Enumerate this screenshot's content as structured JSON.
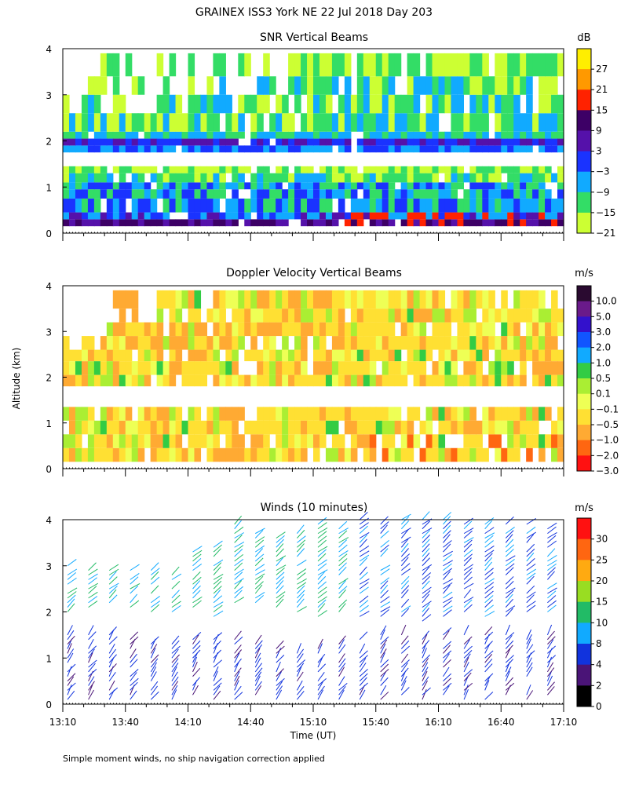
{
  "figure": {
    "title": "GRAINEX ISS3 York NE  22 Jul 2018 Day 203",
    "y_axis_label": "Altitude (km)",
    "x_axis_label": "Time (UT)",
    "footnote": "Simple moment winds, no ship navigation correction applied"
  },
  "chart_data": [
    {
      "type": "heatmap",
      "title": "SNR Vertical Beams",
      "xlabel": "",
      "ylabel": "Altitude (km)",
      "x_ticks": [
        "13:10",
        "13:40",
        "14:10",
        "14:40",
        "15:10",
        "15:40",
        "16:10",
        "16:40",
        "17:10"
      ],
      "xlim": [
        "13:10",
        "17:10"
      ],
      "ylim": [
        0,
        4
      ],
      "y_ticks": [
        "0",
        "1",
        "2",
        "3",
        "4"
      ],
      "colorbar": {
        "unit": "dB",
        "tick_labels": [
          "27",
          "21",
          "15",
          "9",
          "3",
          "−3",
          "−9",
          "−15",
          "−21"
        ],
        "colors": [
          "#ffee00",
          "#ff9900",
          "#ff2200",
          "#3d0066",
          "#5511aa",
          "#1a33ff",
          "#11aaff",
          "#33dd66",
          "#ccff33"
        ]
      },
      "echo_layers": [
        {
          "altitude_km": [
            0.15,
            1.4
          ],
          "snr_db": [
            -21,
            27
          ]
        },
        {
          "altitude_km": [
            1.8,
            2.0
          ],
          "snr_db": [
            -3,
            3
          ]
        },
        {
          "altitude_km": [
            2.0,
            3.9
          ],
          "snr_db": [
            -21,
            -9
          ]
        }
      ]
    },
    {
      "type": "heatmap",
      "title": "Doppler Velocity Vertical Beams",
      "xlabel": "",
      "ylabel": "Altitude (km)",
      "x_ticks": [
        "13:10",
        "13:40",
        "14:10",
        "14:40",
        "15:10",
        "15:40",
        "16:10",
        "16:40",
        "17:10"
      ],
      "xlim": [
        "13:10",
        "17:10"
      ],
      "ylim": [
        0,
        4
      ],
      "y_ticks": [
        "0",
        "1",
        "2",
        "3",
        "4"
      ],
      "colorbar": {
        "unit": "m/s",
        "tick_labels": [
          "10.0",
          "5.0",
          "3.0",
          "2.0",
          "1.0",
          "0.5",
          "0.1",
          "−0.1",
          "−0.5",
          "−1.0",
          "−2.0",
          "−3.0"
        ],
        "colors": [
          "#2a0a30",
          "#6a1a8a",
          "#3311cc",
          "#1155ff",
          "#11aaff",
          "#33cc44",
          "#aaee33",
          "#eeff55",
          "#ffe033",
          "#ffaa33",
          "#ff6611",
          "#ff1111"
        ]
      }
    },
    {
      "type": "scatter",
      "title": "Winds (10 minutes)",
      "xlabel": "Time (UT)",
      "ylabel": "Altitude (km)",
      "x_ticks": [
        "13:10",
        "13:40",
        "14:10",
        "14:40",
        "15:10",
        "15:40",
        "16:10",
        "16:40",
        "17:10"
      ],
      "xlim": [
        "13:10",
        "17:10"
      ],
      "ylim": [
        0,
        4
      ],
      "y_ticks": [
        "0",
        "1",
        "2",
        "3",
        "4"
      ],
      "colorbar": {
        "unit": "m/s",
        "tick_labels": [
          "30",
          "25",
          "20",
          "15",
          "10",
          "8",
          "4",
          "2",
          "0"
        ],
        "colors": [
          "#ff1111",
          "#ff6611",
          "#ffaa11",
          "#99dd22",
          "#22bb66",
          "#11aaff",
          "#1133dd",
          "#4a1477",
          "#000000"
        ]
      },
      "wind_profiles": [
        {
          "time": "13:10",
          "low_km": [
            0.1,
            1.6
          ],
          "high_km": [
            2.0,
            3.1
          ]
        },
        {
          "time": "13:20",
          "low_km": [
            0.1,
            1.6
          ],
          "high_km": [
            2.1,
            3.0
          ]
        },
        {
          "time": "13:30",
          "low_km": [
            0.1,
            1.6
          ],
          "high_km": [
            2.1,
            3.0
          ]
        },
        {
          "time": "13:40",
          "low_km": [
            0.1,
            1.6
          ],
          "high_km": [
            2.1,
            3.0
          ]
        },
        {
          "time": "13:50",
          "low_km": [
            0.1,
            1.5
          ],
          "high_km": [
            2.0,
            3.0
          ]
        },
        {
          "time": "14:00",
          "low_km": [
            0.1,
            1.4
          ],
          "high_km": [
            2.0,
            2.9
          ]
        },
        {
          "time": "14:10",
          "low_km": [
            0.1,
            1.5
          ],
          "high_km": [
            2.0,
            3.4
          ]
        },
        {
          "time": "14:20",
          "low_km": [
            0.1,
            1.5
          ],
          "high_km": [
            1.8,
            3.5
          ]
        },
        {
          "time": "14:30",
          "low_km": [
            0.1,
            1.5
          ],
          "high_km": [
            2.1,
            4.0
          ]
        },
        {
          "time": "14:40",
          "low_km": [
            0.1,
            1.3
          ],
          "high_km": [
            2.2,
            3.9
          ]
        },
        {
          "time": "14:50",
          "low_km": [
            0.1,
            1.2
          ],
          "high_km": [
            2.1,
            3.7
          ]
        },
        {
          "time": "15:00",
          "low_km": [
            0.1,
            1.1
          ],
          "high_km": [
            2.0,
            3.8
          ]
        },
        {
          "time": "15:10",
          "low_km": [
            0.1,
            1.2
          ],
          "high_km": [
            1.8,
            4.0
          ]
        },
        {
          "time": "15:20",
          "low_km": [
            0.1,
            1.3
          ],
          "high_km": [
            2.0,
            3.9
          ]
        },
        {
          "time": "15:30",
          "low_km": [
            0.1,
            1.5
          ],
          "high_km": [
            1.9,
            4.1
          ]
        },
        {
          "time": "15:40",
          "low_km": [
            0.1,
            1.6
          ],
          "high_km": [
            1.9,
            4.1
          ]
        },
        {
          "time": "15:50",
          "low_km": [
            0.1,
            1.6
          ],
          "high_km": [
            1.9,
            4.1
          ]
        },
        {
          "time": "16:00",
          "low_km": [
            0.1,
            1.6
          ],
          "high_km": [
            1.8,
            4.1
          ]
        },
        {
          "time": "16:10",
          "low_km": [
            0.1,
            1.6
          ],
          "high_km": [
            1.9,
            4.1
          ]
        },
        {
          "time": "16:20",
          "low_km": [
            0.1,
            1.6
          ],
          "high_km": [
            1.9,
            4.0
          ]
        },
        {
          "time": "16:30",
          "low_km": [
            0.1,
            1.6
          ],
          "high_km": [
            1.9,
            4.0
          ]
        },
        {
          "time": "16:40",
          "low_km": [
            0.1,
            1.6
          ],
          "high_km": [
            1.9,
            4.0
          ]
        },
        {
          "time": "16:50",
          "low_km": [
            0.1,
            1.5
          ],
          "high_km": [
            2.0,
            4.0
          ]
        },
        {
          "time": "17:00",
          "low_km": [
            0.1,
            1.6
          ],
          "high_km": [
            2.0,
            3.9
          ]
        }
      ]
    }
  ]
}
